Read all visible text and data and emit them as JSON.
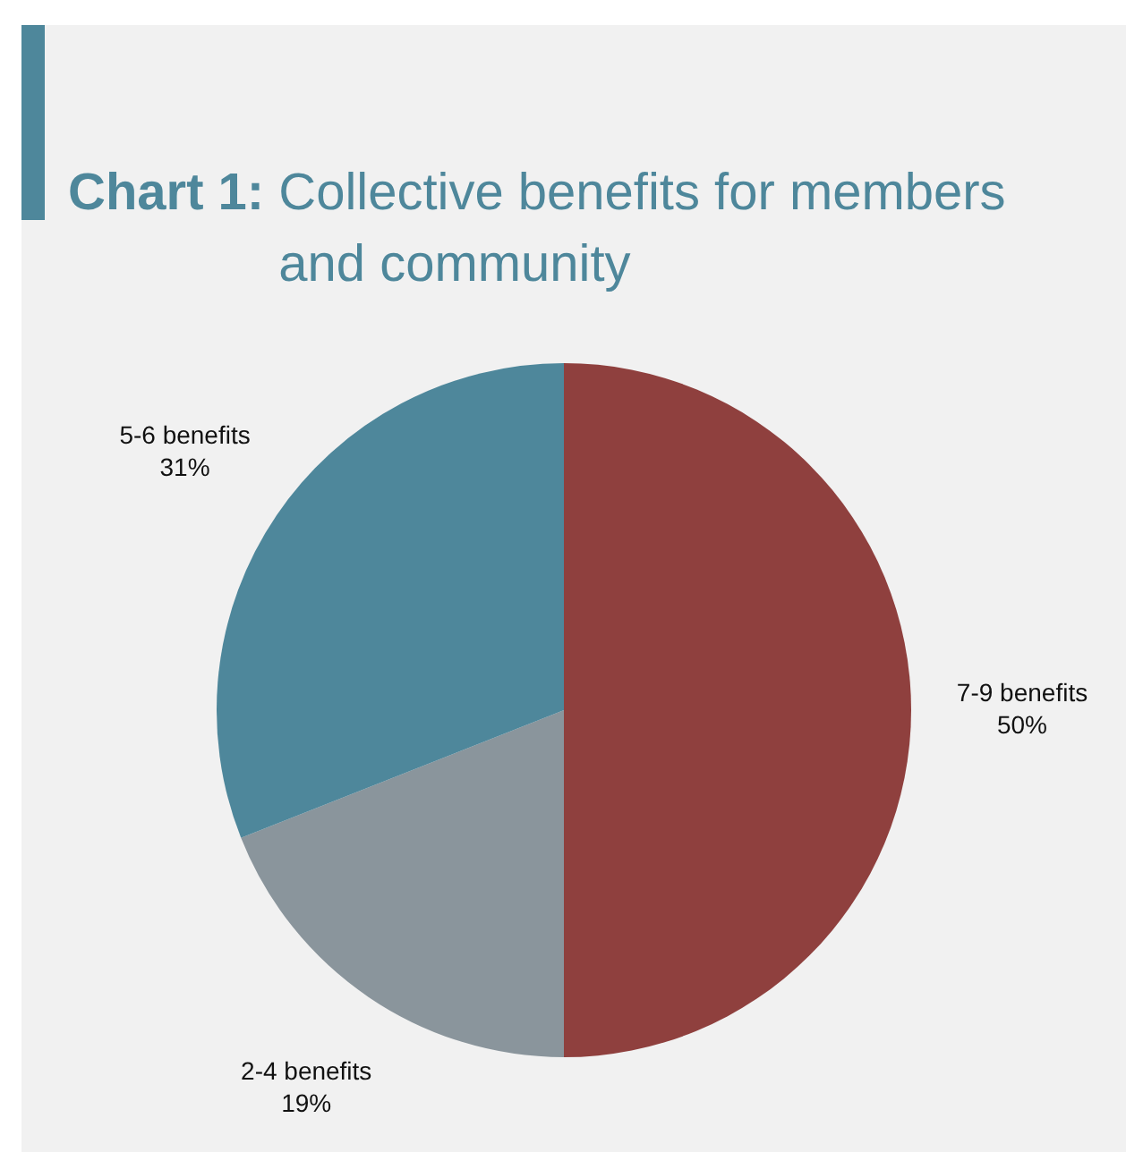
{
  "chart_data": {
    "type": "pie",
    "title": "Chart 1: Collective benefits for members and community",
    "categories": [
      "7-9 benefits",
      "2-4 benefits",
      "5-6 benefits"
    ],
    "values": [
      50,
      19,
      31
    ],
    "colors": [
      "#8f403e",
      "#8a959c",
      "#4e879b"
    ],
    "value_labels": [
      "50%",
      "19%",
      "31%"
    ],
    "legend": false
  }
}
